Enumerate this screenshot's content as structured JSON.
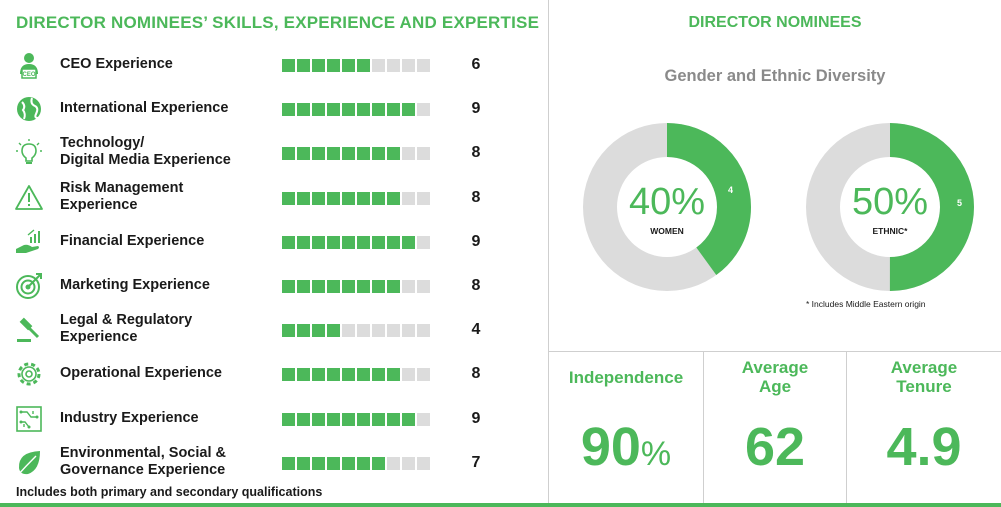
{
  "left": {
    "title": "DIRECTOR NOMINEES’ SKILLS, EXPERIENCE AND EXPERTISE",
    "footnote": "Includes both primary and secondary qualifications",
    "total_segments": 10,
    "skills": [
      {
        "label": "CEO Experience",
        "count": 6,
        "icon": "ceo-person-icon"
      },
      {
        "label": "International Experience",
        "count": 9,
        "icon": "globe-icon"
      },
      {
        "label": "Technology/\nDigital Media Experience",
        "count": 8,
        "icon": "lightbulb-icon"
      },
      {
        "label": "Risk Management\nExperience",
        "count": 8,
        "icon": "warning-triangle-icon"
      },
      {
        "label": "Financial Experience",
        "count": 9,
        "icon": "hand-chart-icon"
      },
      {
        "label": "Marketing Experience",
        "count": 8,
        "icon": "target-icon"
      },
      {
        "label": "Legal & Regulatory\nExperience",
        "count": 4,
        "icon": "gavel-icon"
      },
      {
        "label": "Operational Experience",
        "count": 8,
        "icon": "gear-icon"
      },
      {
        "label": "Industry Experience",
        "count": 9,
        "icon": "circuit-board-icon"
      },
      {
        "label": "Environmental, Social &\nGovernance Experience",
        "count": 7,
        "icon": "leaf-icon"
      }
    ]
  },
  "right": {
    "title": "DIRECTOR NOMINEES",
    "subtitle": "Gender and Ethnic Diversity",
    "donuts": [
      {
        "percent_label": "40%",
        "label": "WOMEN",
        "value": 4,
        "fraction": 0.4
      },
      {
        "percent_label": "50%",
        "label": "ETHNIC*",
        "value": 5,
        "fraction": 0.5
      }
    ],
    "donut_note": "* Includes Middle Eastern origin",
    "stats": {
      "independence_label": "Independence",
      "independence_value": "90",
      "independence_unit": "%",
      "age_label": "Average\nAge",
      "age_value": "62",
      "tenure_label": "Average\nTenure",
      "tenure_value": "4.9"
    }
  },
  "colors": {
    "accent": "#4cb85a",
    "inactive": "#dcdcdc",
    "subtitle": "#8a8a8a"
  }
}
